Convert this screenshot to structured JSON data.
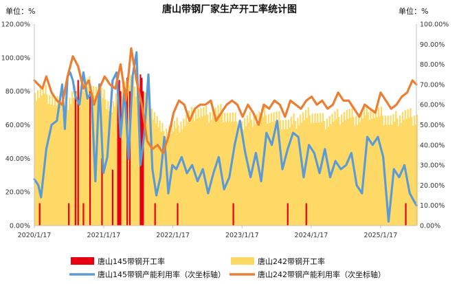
{
  "chart_data": {
    "type": "bar",
    "title": "唐山带钢厂家生产开工率统计图",
    "left_unit": "单位：%",
    "right_unit": "单位：%",
    "ylim_left": [
      0,
      120
    ],
    "ylim_right": [
      0,
      100
    ],
    "left_ticks": [
      "0.00%",
      "20.00%",
      "40.00%",
      "60.00%",
      "80.00%",
      "100.00%",
      "120.00%"
    ],
    "right_ticks": [
      "0.00%",
      "10.00%",
      "20.00%",
      "30.00%",
      "40.00%",
      "50.00%",
      "60.00%",
      "70.00%",
      "80.00%",
      "90.00%",
      "100.00%"
    ],
    "x_ticks": [
      "2020/1/17",
      "2021/1/17",
      "2022/1/17",
      "2023/1/17",
      "2024/1/17",
      "2025/1/17"
    ],
    "x_range": [
      "2020/1/17",
      "2025/7/25"
    ],
    "grid": false,
    "legend_position": "bottom",
    "series": [
      {
        "name": "唐山145带钢开工率",
        "kind": "bar",
        "axis": "left",
        "color": "#e60012",
        "points": [
          [
            "2020/2/14",
            13.3
          ],
          [
            "2020/7/17",
            13.3
          ],
          [
            "2020/8/21",
            80.0
          ],
          [
            "2020/9/4",
            86.7
          ],
          [
            "2020/10/2",
            13.3
          ],
          [
            "2020/11/6",
            80.0
          ],
          [
            "2021/1/8",
            40.0
          ],
          [
            "2021/3/5",
            33.3
          ],
          [
            "2021/4/2",
            80.0
          ],
          [
            "2021/4/9",
            86.7
          ],
          [
            "2021/4/16",
            80.0
          ],
          [
            "2021/5/21",
            88.0
          ],
          [
            "2021/6/4",
            80.0
          ],
          [
            "2021/7/30",
            90.0
          ],
          [
            "2021/8/6",
            88.0
          ],
          [
            "2021/8/13",
            80.0
          ],
          [
            "2021/10/15",
            13.3
          ],
          [
            "2022/2/11",
            13.3
          ],
          [
            "2022/12/2",
            13.3
          ],
          [
            "2023/9/15",
            13.3
          ],
          [
            "2023/12/22",
            13.3
          ],
          [
            "2025/5/30",
            13.3
          ]
        ]
      },
      {
        "name": "唐山242带钢开工率",
        "kind": "bar",
        "axis": "left",
        "color": "#ffd966",
        "x": [
          "2020/1/17",
          "2020/3/1",
          "2020/5/1",
          "2020/7/1",
          "2020/9/1",
          "2020/11/1",
          "2021/1/1",
          "2021/3/1",
          "2021/4/15",
          "2021/6/1",
          "2021/7/15",
          "2021/9/1",
          "2021/10/15",
          "2021/11/15",
          "2022/1/15",
          "2022/3/15",
          "2022/5/15",
          "2022/7/15",
          "2022/9/15",
          "2022/11/15",
          "2023/1/15",
          "2023/3/15",
          "2023/5/15",
          "2023/7/15",
          "2023/9/15",
          "2023/11/15",
          "2024/1/15",
          "2024/3/15",
          "2024/5/15",
          "2024/7/15",
          "2024/9/15",
          "2024/11/15",
          "2025/1/15",
          "2025/3/15",
          "2025/5/15",
          "2025/7/25"
        ],
        "values": [
          78,
          80,
          74,
          70,
          82,
          84,
          78,
          70,
          82,
          86,
          80,
          74,
          64,
          56,
          58,
          62,
          68,
          66,
          68,
          64,
          60,
          64,
          66,
          64,
          60,
          64,
          66,
          62,
          64,
          66,
          64,
          68,
          66,
          62,
          66,
          64
        ]
      },
      {
        "name": "唐山145带钢产能利用率（次坐标轴）",
        "kind": "line",
        "axis": "right",
        "color": "#5b9bd5",
        "x": [
          "2020/1/17",
          "2020/2/7",
          "2020/2/21",
          "2020/3/20",
          "2020/4/17",
          "2020/5/15",
          "2020/6/12",
          "2020/6/26",
          "2020/7/10",
          "2020/7/24",
          "2020/8/7",
          "2020/8/21",
          "2020/9/11",
          "2020/10/2",
          "2020/10/23",
          "2020/11/13",
          "2020/12/4",
          "2020/12/25",
          "2021/1/15",
          "2021/2/5",
          "2021/3/5",
          "2021/3/26",
          "2021/4/16",
          "2021/5/7",
          "2021/5/28",
          "2021/6/18",
          "2021/7/9",
          "2021/7/30",
          "2021/8/20",
          "2021/9/10",
          "2021/10/1",
          "2021/10/22",
          "2021/11/12",
          "2021/12/3",
          "2021/12/24",
          "2022/1/14",
          "2022/2/4",
          "2022/3/4",
          "2022/4/1",
          "2022/4/29",
          "2022/5/27",
          "2022/6/24",
          "2022/7/22",
          "2022/8/19",
          "2022/9/16",
          "2022/10/14",
          "2022/11/11",
          "2022/12/9",
          "2023/1/6",
          "2023/2/3",
          "2023/3/3",
          "2023/3/31",
          "2023/4/28",
          "2023/5/26",
          "2023/6/23",
          "2023/7/21",
          "2023/8/18",
          "2023/9/15",
          "2023/10/13",
          "2023/11/10",
          "2023/12/8",
          "2024/1/5",
          "2024/2/2",
          "2024/3/1",
          "2024/3/29",
          "2024/4/26",
          "2024/5/24",
          "2024/6/21",
          "2024/7/19",
          "2024/8/16",
          "2024/9/13",
          "2024/10/11",
          "2024/11/8",
          "2024/12/6",
          "2025/1/3",
          "2025/1/31",
          "2025/2/28",
          "2025/3/28",
          "2025/4/25",
          "2025/5/23",
          "2025/6/20",
          "2025/7/25"
        ],
        "values": [
          23,
          20,
          14,
          38,
          50,
          52,
          70,
          48,
          74,
          76,
          72,
          64,
          60,
          76,
          63,
          66,
          22,
          70,
          26,
          34,
          72,
          76,
          44,
          68,
          33,
          74,
          86,
          30,
          46,
          75,
          28,
          15,
          24,
          44,
          16,
          30,
          28,
          34,
          26,
          30,
          22,
          28,
          16,
          26,
          34,
          18,
          24,
          40,
          52,
          36,
          24,
          36,
          22,
          46,
          40,
          52,
          28,
          38,
          46,
          44,
          24,
          40,
          36,
          26,
          38,
          24,
          32,
          28,
          30,
          36,
          20,
          16,
          44,
          40,
          44,
          34,
          2,
          28,
          24,
          30,
          16,
          10
        ]
      },
      {
        "name": "唐山242带钢产能利用率（次坐标轴）",
        "kind": "line",
        "axis": "right",
        "color": "#ed7d31",
        "x": [
          "2020/1/17",
          "2020/2/7",
          "2020/2/28",
          "2020/3/20",
          "2020/4/17",
          "2020/5/15",
          "2020/6/12",
          "2020/7/10",
          "2020/8/7",
          "2020/9/4",
          "2020/10/2",
          "2020/10/30",
          "2020/11/27",
          "2020/12/25",
          "2021/1/22",
          "2021/2/19",
          "2021/3/19",
          "2021/4/16",
          "2021/5/14",
          "2021/6/11",
          "2021/7/9",
          "2021/8/6",
          "2021/9/3",
          "2021/10/1",
          "2021/10/29",
          "2021/11/26",
          "2021/12/24",
          "2022/1/21",
          "2022/2/18",
          "2022/3/18",
          "2022/4/15",
          "2022/5/13",
          "2022/6/10",
          "2022/7/8",
          "2022/8/5",
          "2022/9/2",
          "2022/9/30",
          "2022/10/28",
          "2022/11/25",
          "2022/12/23",
          "2023/1/20",
          "2023/2/17",
          "2023/3/17",
          "2023/4/14",
          "2023/5/12",
          "2023/6/9",
          "2023/7/7",
          "2023/8/4",
          "2023/9/1",
          "2023/9/29",
          "2023/10/27",
          "2023/11/24",
          "2023/12/22",
          "2024/1/19",
          "2024/2/16",
          "2024/3/15",
          "2024/4/12",
          "2024/5/10",
          "2024/6/7",
          "2024/7/5",
          "2024/8/2",
          "2024/8/30",
          "2024/9/27",
          "2024/10/25",
          "2024/11/22",
          "2024/12/20",
          "2025/1/17",
          "2025/2/14",
          "2025/3/14",
          "2025/4/11",
          "2025/5/9",
          "2025/6/6",
          "2025/7/4",
          "2025/7/25"
        ],
        "values": [
          72,
          70,
          68,
          74,
          66,
          62,
          60,
          74,
          84,
          79,
          68,
          72,
          60,
          68,
          74,
          70,
          68,
          80,
          62,
          88,
          72,
          60,
          42,
          38,
          40,
          36,
          44,
          56,
          62,
          60,
          52,
          58,
          60,
          60,
          62,
          52,
          56,
          60,
          62,
          60,
          54,
          60,
          56,
          50,
          60,
          58,
          62,
          60,
          54,
          62,
          60,
          58,
          62,
          64,
          60,
          62,
          58,
          60,
          66,
          62,
          62,
          58,
          54,
          60,
          58,
          56,
          66,
          62,
          58,
          60,
          64,
          66,
          72,
          70
        ]
      }
    ]
  }
}
